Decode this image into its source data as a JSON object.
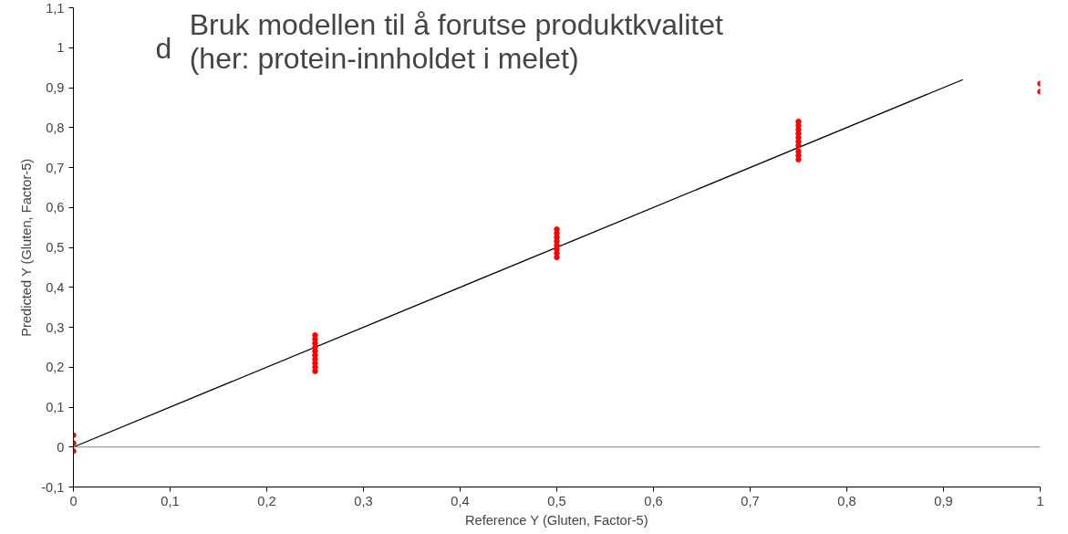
{
  "chart_data": {
    "type": "scatter",
    "title": "Bruk modellen til å forutse produktkvalitet",
    "subtitle": "(her: protein-innholdet i melet)",
    "annotations": [
      "d"
    ],
    "xlabel": "Reference Y (Gluten, Factor-5)",
    "ylabel": "Predicted Y (Gluten, Factor-5)",
    "xlim": [
      0,
      1
    ],
    "ylim": [
      -0.1,
      1.1
    ],
    "xticks": [
      0,
      {
        "value": 0.1,
        "label": "0,1"
      },
      {
        "value": 0.2,
        "label": "0,2"
      },
      {
        "value": 0.3,
        "label": "0,3"
      },
      {
        "value": 0.4,
        "label": "0,4"
      },
      {
        "value": 0.5,
        "label": "0,5"
      },
      {
        "value": 0.6,
        "label": "0,6"
      },
      {
        "value": 0.7,
        "label": "0,7"
      },
      {
        "value": 0.8,
        "label": "0,8"
      },
      {
        "value": 0.9,
        "label": "0,9"
      },
      1
    ],
    "yticks": [
      {
        "value": -0.1,
        "label": "-0,1"
      },
      0,
      {
        "value": 0.1,
        "label": "0,1"
      },
      {
        "value": 0.2,
        "label": "0,2"
      },
      {
        "value": 0.3,
        "label": "0,3"
      },
      {
        "value": 0.4,
        "label": "0,4"
      },
      {
        "value": 0.5,
        "label": "0,5"
      },
      {
        "value": 0.6,
        "label": "0,6"
      },
      {
        "value": 0.7,
        "label": "0,7"
      },
      {
        "value": 0.8,
        "label": "0,8"
      },
      {
        "value": 0.9,
        "label": "0,9"
      },
      1,
      {
        "value": 1.1,
        "label": "1,1"
      }
    ],
    "grid": false,
    "ref_lines": [
      {
        "axis": "y",
        "value": 0,
        "color": "#808080"
      }
    ],
    "series": [
      {
        "color": "#ff0000",
        "marker": "circle",
        "x": [
          0,
          0,
          0,
          0.25,
          0.25,
          0.25,
          0.25,
          0.25,
          0.25,
          0.25,
          0.25,
          0.25,
          0.25,
          0.5,
          0.5,
          0.5,
          0.5,
          0.5,
          0.5,
          0.5,
          0.5,
          0.75,
          0.75,
          0.75,
          0.75,
          0.75,
          0.75,
          0.75,
          0.75,
          0.75,
          0.75,
          1,
          1
        ],
        "values": [
          -0.01,
          0.01,
          0.03,
          0.19,
          0.2,
          0.21,
          0.22,
          0.23,
          0.24,
          0.25,
          0.26,
          0.27,
          0.28,
          0.475,
          0.485,
          0.495,
          0.505,
          0.515,
          0.525,
          0.535,
          0.545,
          0.72,
          0.73,
          0.74,
          0.755,
          0.765,
          0.775,
          0.785,
          0.795,
          0.805,
          0.815,
          0.89,
          0.91
        ]
      },
      {
        "type": "line",
        "color": "#000000",
        "x": [
          0,
          0.92
        ],
        "values": [
          0,
          0.92
        ]
      }
    ]
  }
}
